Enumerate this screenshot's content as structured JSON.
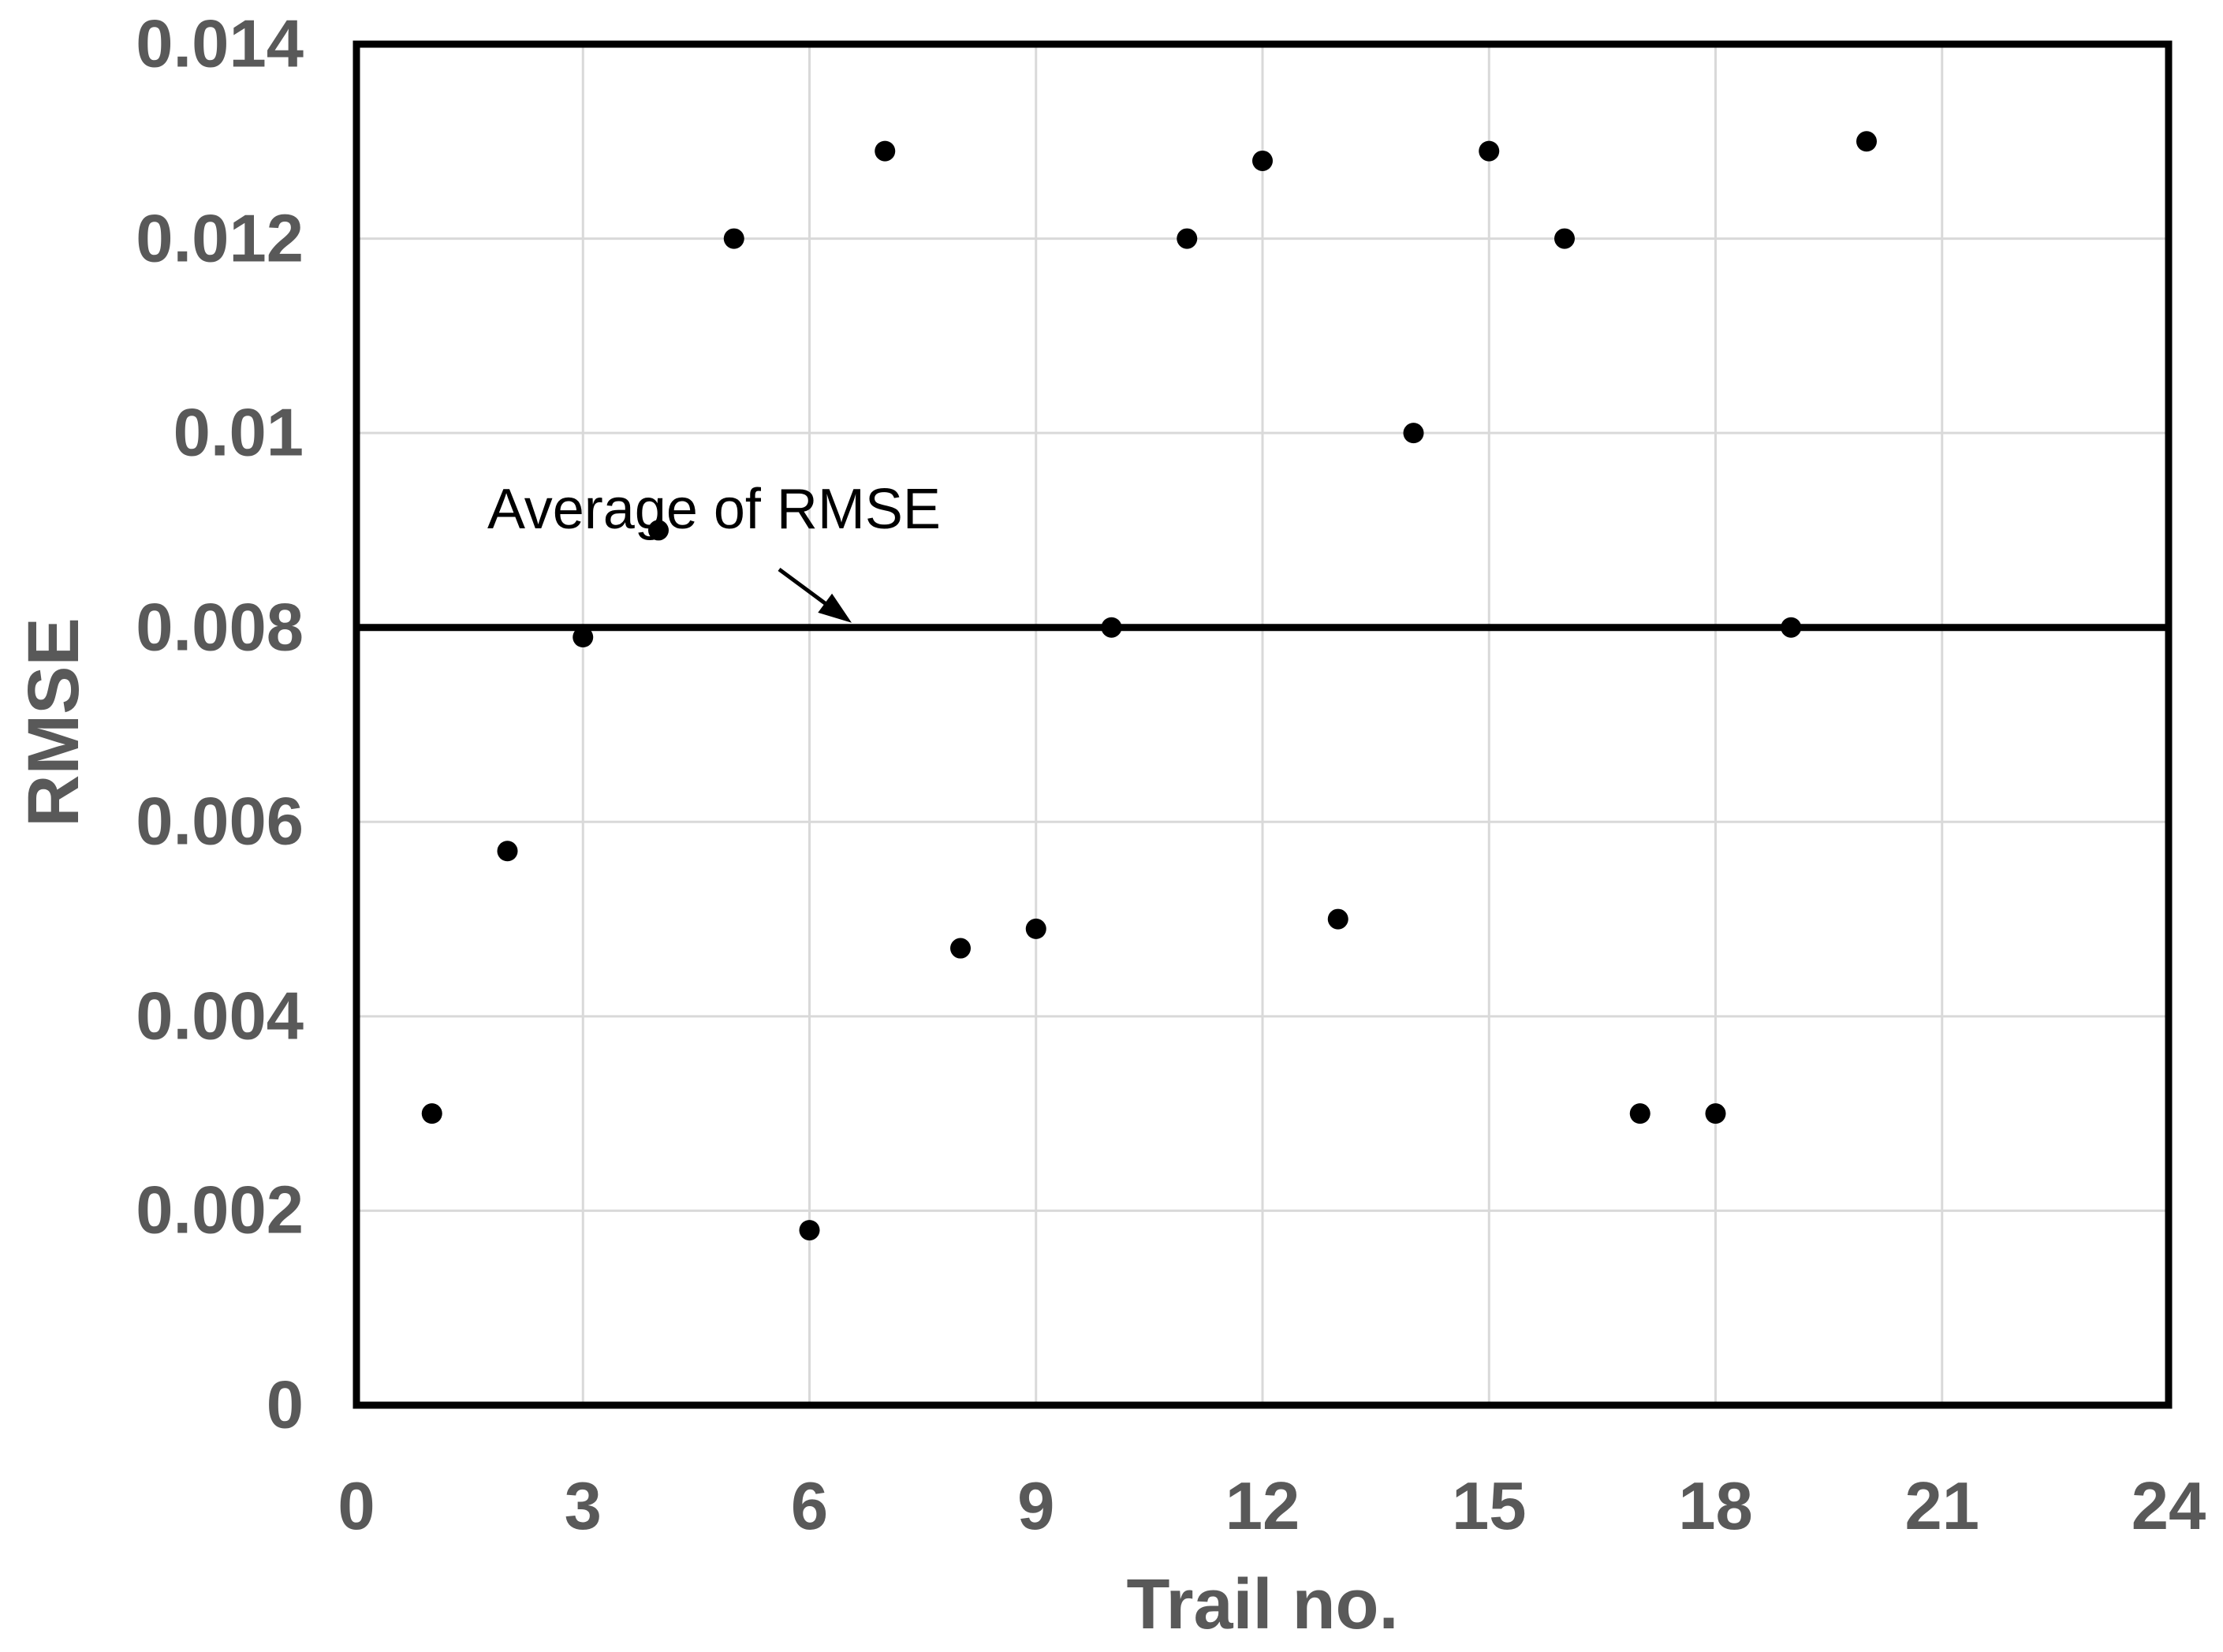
{
  "chart_data": {
    "type": "scatter",
    "title": "",
    "xlabel": "Trail no.",
    "ylabel": "RMSE",
    "xlim": [
      0,
      24
    ],
    "ylim": [
      0,
      0.014
    ],
    "grid": true,
    "legend_position": "none",
    "x_ticks": [
      {
        "value": 0,
        "label": "0"
      },
      {
        "value": 3,
        "label": "3"
      },
      {
        "value": 6,
        "label": "6"
      },
      {
        "value": 9,
        "label": "9"
      },
      {
        "value": 12,
        "label": "12"
      },
      {
        "value": 15,
        "label": "15"
      },
      {
        "value": 18,
        "label": "18"
      },
      {
        "value": 21,
        "label": "21"
      },
      {
        "value": 24,
        "label": "24"
      }
    ],
    "y_ticks": [
      {
        "value": 0,
        "label": "0"
      },
      {
        "value": 0.002,
        "label": "0.002"
      },
      {
        "value": 0.004,
        "label": "0.004"
      },
      {
        "value": 0.006,
        "label": "0.006"
      },
      {
        "value": 0.008,
        "label": "0.008"
      },
      {
        "value": 0.01,
        "label": "0.01"
      },
      {
        "value": 0.012,
        "label": "0.012"
      },
      {
        "value": 0.014,
        "label": "0.014"
      }
    ],
    "points": [
      {
        "x": 1,
        "y": 0.003
      },
      {
        "x": 2,
        "y": 0.0057
      },
      {
        "x": 3,
        "y": 0.0079
      },
      {
        "x": 4,
        "y": 0.009
      },
      {
        "x": 5,
        "y": 0.012
      },
      {
        "x": 6,
        "y": 0.0018
      },
      {
        "x": 7,
        "y": 0.0129
      },
      {
        "x": 8,
        "y": 0.0047
      },
      {
        "x": 9,
        "y": 0.0049
      },
      {
        "x": 10,
        "y": 0.008
      },
      {
        "x": 11,
        "y": 0.012
      },
      {
        "x": 12,
        "y": 0.0128
      },
      {
        "x": 13,
        "y": 0.005
      },
      {
        "x": 14,
        "y": 0.01
      },
      {
        "x": 15,
        "y": 0.0129
      },
      {
        "x": 16,
        "y": 0.012
      },
      {
        "x": 17,
        "y": 0.003
      },
      {
        "x": 18,
        "y": 0.003
      },
      {
        "x": 19,
        "y": 0.008
      },
      {
        "x": 20,
        "y": 0.013
      }
    ],
    "average_line": {
      "value": 0.008,
      "label": "Average of RMSE"
    },
    "colors": {
      "point": "#000000",
      "grid": "#d9d9d9",
      "frame": "#000000",
      "average_line": "#000000",
      "tick_label": "#595959",
      "axis_title": "#595959",
      "annotation_text": "#000000",
      "background": "#ffffff"
    }
  }
}
